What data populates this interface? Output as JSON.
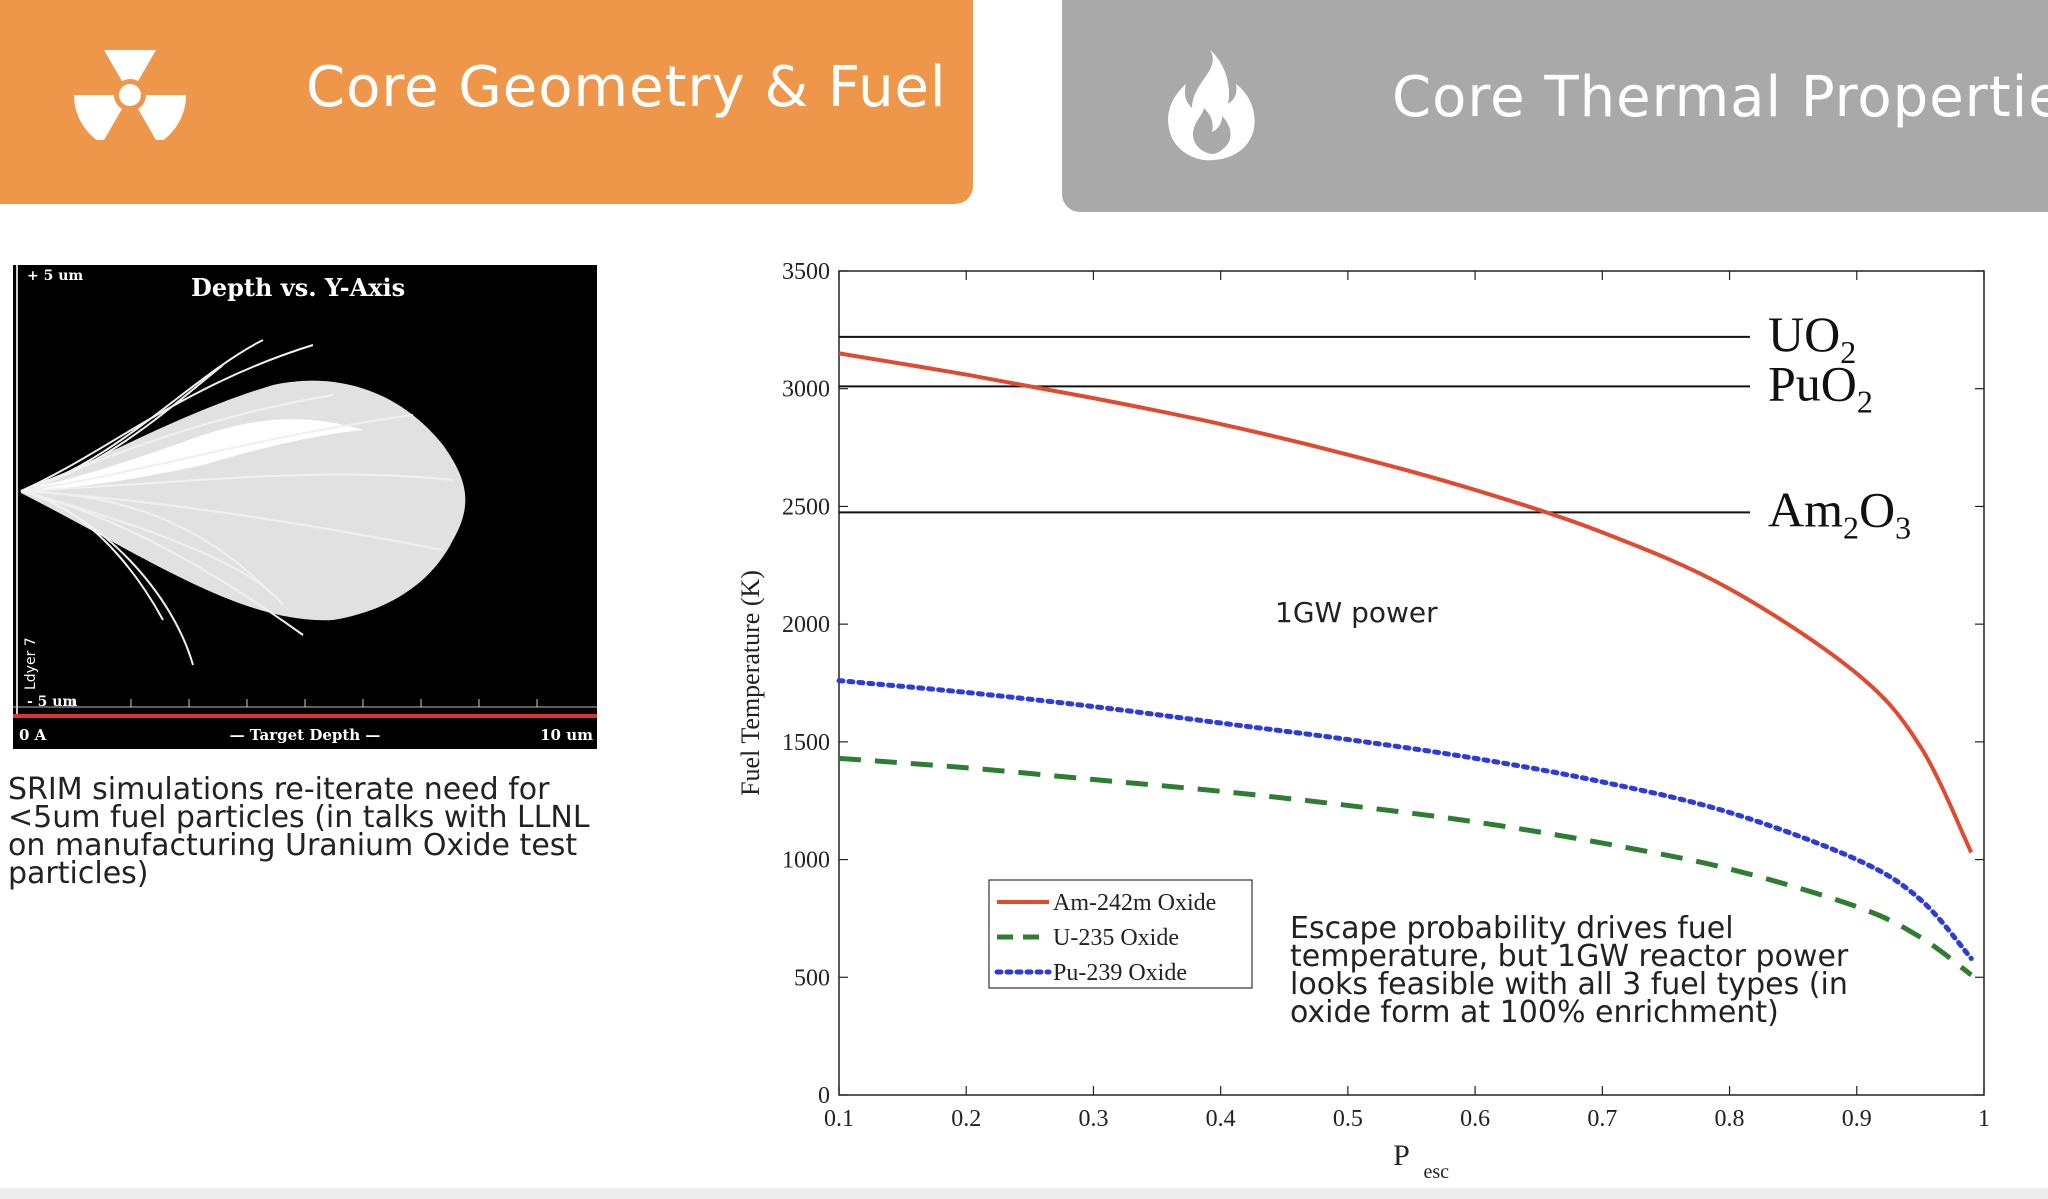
{
  "tabs": {
    "core_geometry": {
      "label": "Core Geometry & Fuel",
      "icon": "radiation-icon",
      "color": "#ee9649"
    },
    "core_thermal": {
      "label": "Core Thermal Properties",
      "icon": "flame-icon",
      "color": "#a9a9a9"
    }
  },
  "srim": {
    "title": "Depth vs. Y-Axis",
    "y_top_label": "+ 5 um",
    "y_bottom_label": "- 5 um",
    "y_axis_label": "Ldyer 7",
    "x_left_label": "0 A",
    "x_center_label": "— Target Depth —",
    "x_right_label": "10 um",
    "caption_lines": [
      "SRIM simulations re-iterate need for",
      "<5um fuel particles (in talks with LLNL",
      "on manufacturing Uranium Oxide test",
      "particles)"
    ]
  },
  "chart_data": {
    "type": "line",
    "title": "",
    "xlabel": "P",
    "xlabel_sub": "esc",
    "ylabel": "Fuel Temperature (K)",
    "xlim": [
      0.1,
      1.0
    ],
    "ylim": [
      0,
      3500
    ],
    "xticks": [
      0.1,
      0.2,
      0.3,
      0.4,
      0.5,
      0.6,
      0.7,
      0.8,
      0.9,
      1
    ],
    "xtick_labels": [
      "0.1",
      "0.2",
      "0.3",
      "0.4",
      "0.5",
      "0.6",
      "0.7",
      "0.8",
      "0.9",
      "1"
    ],
    "yticks": [
      0,
      500,
      1000,
      1500,
      2000,
      2500,
      3000,
      3500
    ],
    "ytick_labels": [
      "0",
      "500",
      "1000",
      "1500",
      "2000",
      "2500",
      "3000",
      "3500"
    ],
    "grid": false,
    "x": [
      0.1,
      0.2,
      0.3,
      0.4,
      0.5,
      0.6,
      0.7,
      0.8,
      0.9,
      0.95,
      0.99
    ],
    "series": [
      {
        "name": "Am-242m Oxide",
        "color": "#e04a30",
        "style": "solid",
        "values": [
          3150,
          3060,
          2960,
          2850,
          2720,
          2570,
          2390,
          2150,
          1790,
          1480,
          1030
        ]
      },
      {
        "name": "U-235 Oxide",
        "color": "#2e7d32",
        "style": "dashed",
        "values": [
          1430,
          1390,
          1340,
          1290,
          1230,
          1160,
          1070,
          960,
          800,
          670,
          510
        ]
      },
      {
        "name": "Pu-239 Oxide",
        "color": "#2f3bd6",
        "style": "dotted",
        "values": [
          1760,
          1710,
          1650,
          1580,
          1510,
          1430,
          1330,
          1200,
          1000,
          830,
          580
        ]
      }
    ],
    "reference_lines": [
      {
        "label_base": "UO",
        "label_sub": "2",
        "label_base2": "",
        "label_sub2": "",
        "value": 3220
      },
      {
        "label_base": "PuO",
        "label_sub": "2",
        "label_base2": "",
        "label_sub2": "",
        "value": 3010
      },
      {
        "label_base": "Am",
        "label_sub": "2",
        "label_base2": "O",
        "label_sub2": "3",
        "value": 2475
      }
    ],
    "annotations": {
      "power": "1GW power",
      "note_lines": [
        "Escape probability drives fuel",
        "temperature, but 1GW reactor power",
        "looks feasible with all 3 fuel types (in",
        "oxide form at 100% enrichment)"
      ]
    },
    "legend_position": "lower-left"
  }
}
